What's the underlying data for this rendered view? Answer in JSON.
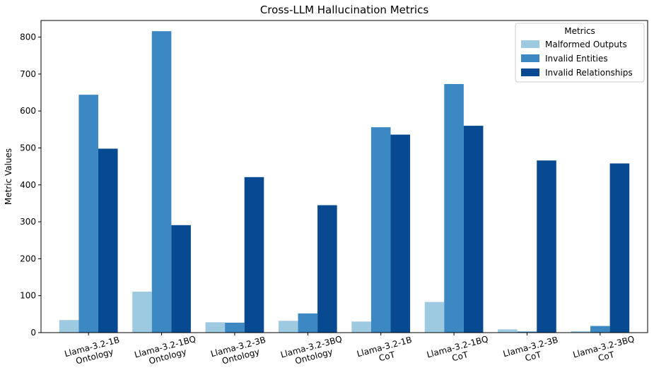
{
  "chart_data": {
    "type": "bar",
    "title": "Cross-LLM Hallucination Metrics",
    "xlabel": "",
    "ylabel": "Metric Values",
    "categories": [
      [
        "Llama-3.2-1B",
        "Ontology"
      ],
      [
        "Llama-3.2-1BQ",
        "Ontology"
      ],
      [
        "Llama-3.2-3B",
        "Ontology"
      ],
      [
        "Llama-3.2-3BQ",
        "Ontology"
      ],
      [
        "Llama-3.2-1B",
        "CoT"
      ],
      [
        "Llama-3.2-1BQ",
        "CoT"
      ],
      [
        "Llama-3.2-3B",
        "CoT"
      ],
      [
        "Llama-3.2-3BQ",
        "CoT"
      ]
    ],
    "series": [
      {
        "name": "Malformed Outputs",
        "color": "#9ecae1",
        "values": [
          34,
          111,
          28,
          32,
          30,
          83,
          9,
          4
        ]
      },
      {
        "name": "Invalid Entities",
        "color": "#3b88c3",
        "values": [
          644,
          816,
          27,
          52,
          556,
          673,
          3,
          18
        ]
      },
      {
        "name": "Invalid Relationships",
        "color": "#084a91",
        "values": [
          498,
          291,
          421,
          345,
          536,
          560,
          466,
          458
        ]
      }
    ],
    "ylim": [
      0,
      845
    ],
    "yticks": [
      0,
      100,
      200,
      300,
      400,
      500,
      600,
      700,
      800
    ],
    "legend_title": "Metrics",
    "legend_position": "top-right",
    "grid": false
  }
}
